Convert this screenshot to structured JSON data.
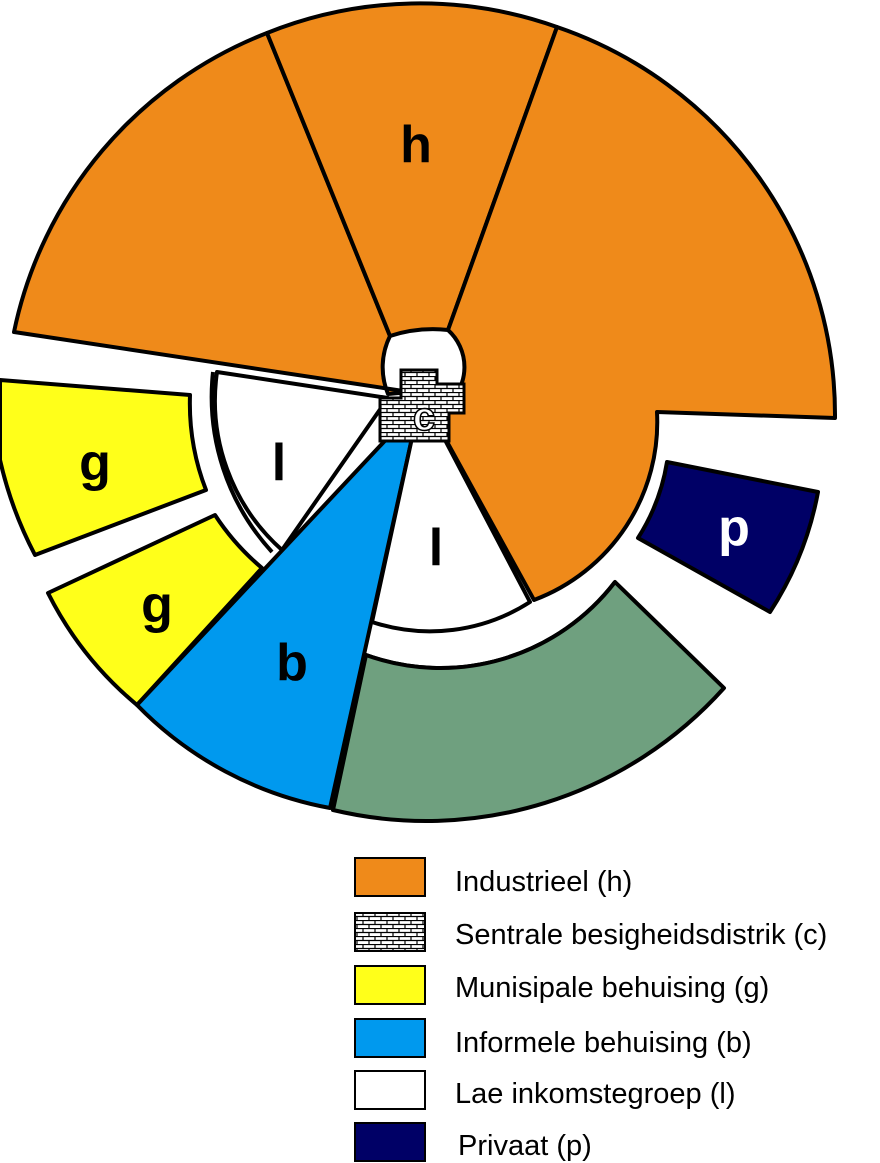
{
  "colors": {
    "industrial": "#ef8a1a",
    "municipal": "#ffff1a",
    "informal": "#0099ee",
    "low_income": "#ffffff",
    "private": "#000066",
    "unlabeled": "#6fa07f",
    "outline": "#000000"
  },
  "sector_labels": {
    "industrial": "h",
    "cbd": "c",
    "municipal": "g",
    "informal": "b",
    "low_income": "l",
    "private": "p"
  },
  "legend": [
    {
      "key": "industrial",
      "label": "Industrieel (h)"
    },
    {
      "key": "cbd",
      "label": "Sentrale besigheidsdistrik (c)"
    },
    {
      "key": "municipal",
      "label": "Munisipale behuising (g)"
    },
    {
      "key": "informal",
      "label": "Informele behuising (b)"
    },
    {
      "key": "low_income",
      "label": "Lae inkomstegroep (l)"
    },
    {
      "key": "private",
      "label": "Privaat (p)"
    }
  ]
}
